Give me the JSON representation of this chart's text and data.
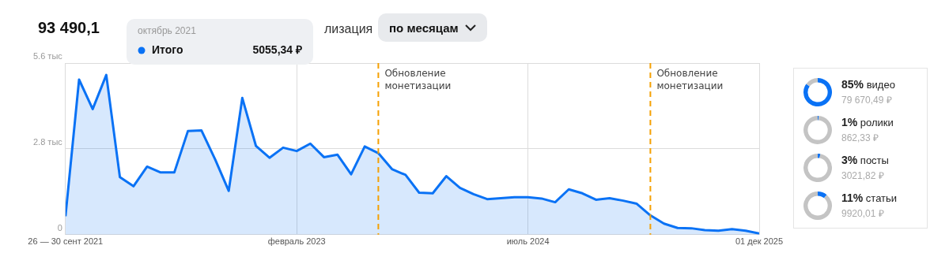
{
  "chart_data": [
    {
      "type": "area",
      "title": "93 490,1",
      "x": [
        "2021-09",
        "2021-10",
        "2021-11",
        "2021-12",
        "2022-01",
        "2022-02",
        "2022-03",
        "2022-04",
        "2022-05",
        "2022-06",
        "2022-07",
        "2022-08",
        "2022-09",
        "2022-10",
        "2022-11",
        "2022-12",
        "2023-01",
        "2023-02",
        "2023-03",
        "2023-04",
        "2023-05",
        "2023-06",
        "2023-07",
        "2023-08",
        "2023-09",
        "2023-10",
        "2023-11",
        "2023-12",
        "2024-01",
        "2024-02",
        "2024-03",
        "2024-04",
        "2024-05",
        "2024-06",
        "2024-07",
        "2024-08",
        "2024-09",
        "2024-10",
        "2024-11",
        "2024-12",
        "2025-01",
        "2025-02",
        "2025-03",
        "2025-04",
        "2025-05",
        "2025-06",
        "2025-07",
        "2025-08",
        "2025-09",
        "2025-10",
        "2025-11",
        "2025-12"
      ],
      "series": [
        {
          "name": "Итого",
          "color": "#0a72f5",
          "values": [
            0.6,
            5.06,
            4.1,
            5.21,
            1.88,
            1.58,
            2.22,
            2.03,
            2.03,
            3.38,
            3.4,
            2.46,
            1.43,
            4.46,
            2.9,
            2.51,
            2.84,
            2.73,
            2.97,
            2.53,
            2.61,
            1.97,
            2.88,
            2.66,
            2.14,
            1.95,
            1.37,
            1.35,
            1.91,
            1.53,
            1.32,
            1.16,
            1.19,
            1.22,
            1.22,
            1.18,
            1.06,
            1.48,
            1.35,
            1.14,
            1.19,
            1.11,
            1.01,
            0.63,
            0.36,
            0.22,
            0.21,
            0.15,
            0.13,
            0.18,
            0.13,
            0.04
          ]
        }
      ],
      "xlim": [
        "2021-09",
        "2025-12"
      ],
      "xticks": [
        {
          "value": "2021-09",
          "label": "26 — 30 сент 2021"
        },
        {
          "value": "2023-02",
          "label": "февраль 2023"
        },
        {
          "value": "2024-07",
          "label": "июль 2024"
        },
        {
          "value": "2025-12",
          "label": "01 дек 2025"
        }
      ],
      "ylim": [
        0,
        5.6
      ],
      "yticks": [
        0,
        {
          "value": 2.8,
          "label": "2.8 тыс"
        },
        {
          "value": 5.6,
          "label": "5.6 тыс"
        }
      ],
      "grid": true,
      "marker": "none",
      "ref_lines": [
        {
          "axis": "x",
          "value": "2023-08",
          "label": "Обновление монетизации",
          "color": "#f5a000",
          "line_style": "dashed"
        },
        {
          "axis": "x",
          "value": "2025-04",
          "label": "Обновление монетизации",
          "color": "#f5a000",
          "line_style": "dashed"
        }
      ],
      "annotations": [
        "октябрь 2021",
        "5055,34 ₽",
        "лизация",
        "по месяцам"
      ]
    },
    {
      "type": "other",
      "categories": [
        "видео",
        "ролики",
        "посты",
        "статьи"
      ],
      "values": [
        85,
        1,
        3,
        11
      ],
      "value_labels": [
        "85%",
        "1%",
        "3%",
        "11%"
      ],
      "colors": [
        "#0a72f5",
        "#0a72f5",
        "#0a72f5",
        "#0a72f5"
      ],
      "annotations": [
        "79 670,49 ₽",
        "862,33 ₽",
        "3021,82 ₽",
        "9920,01 ₽"
      ]
    }
  ]
}
